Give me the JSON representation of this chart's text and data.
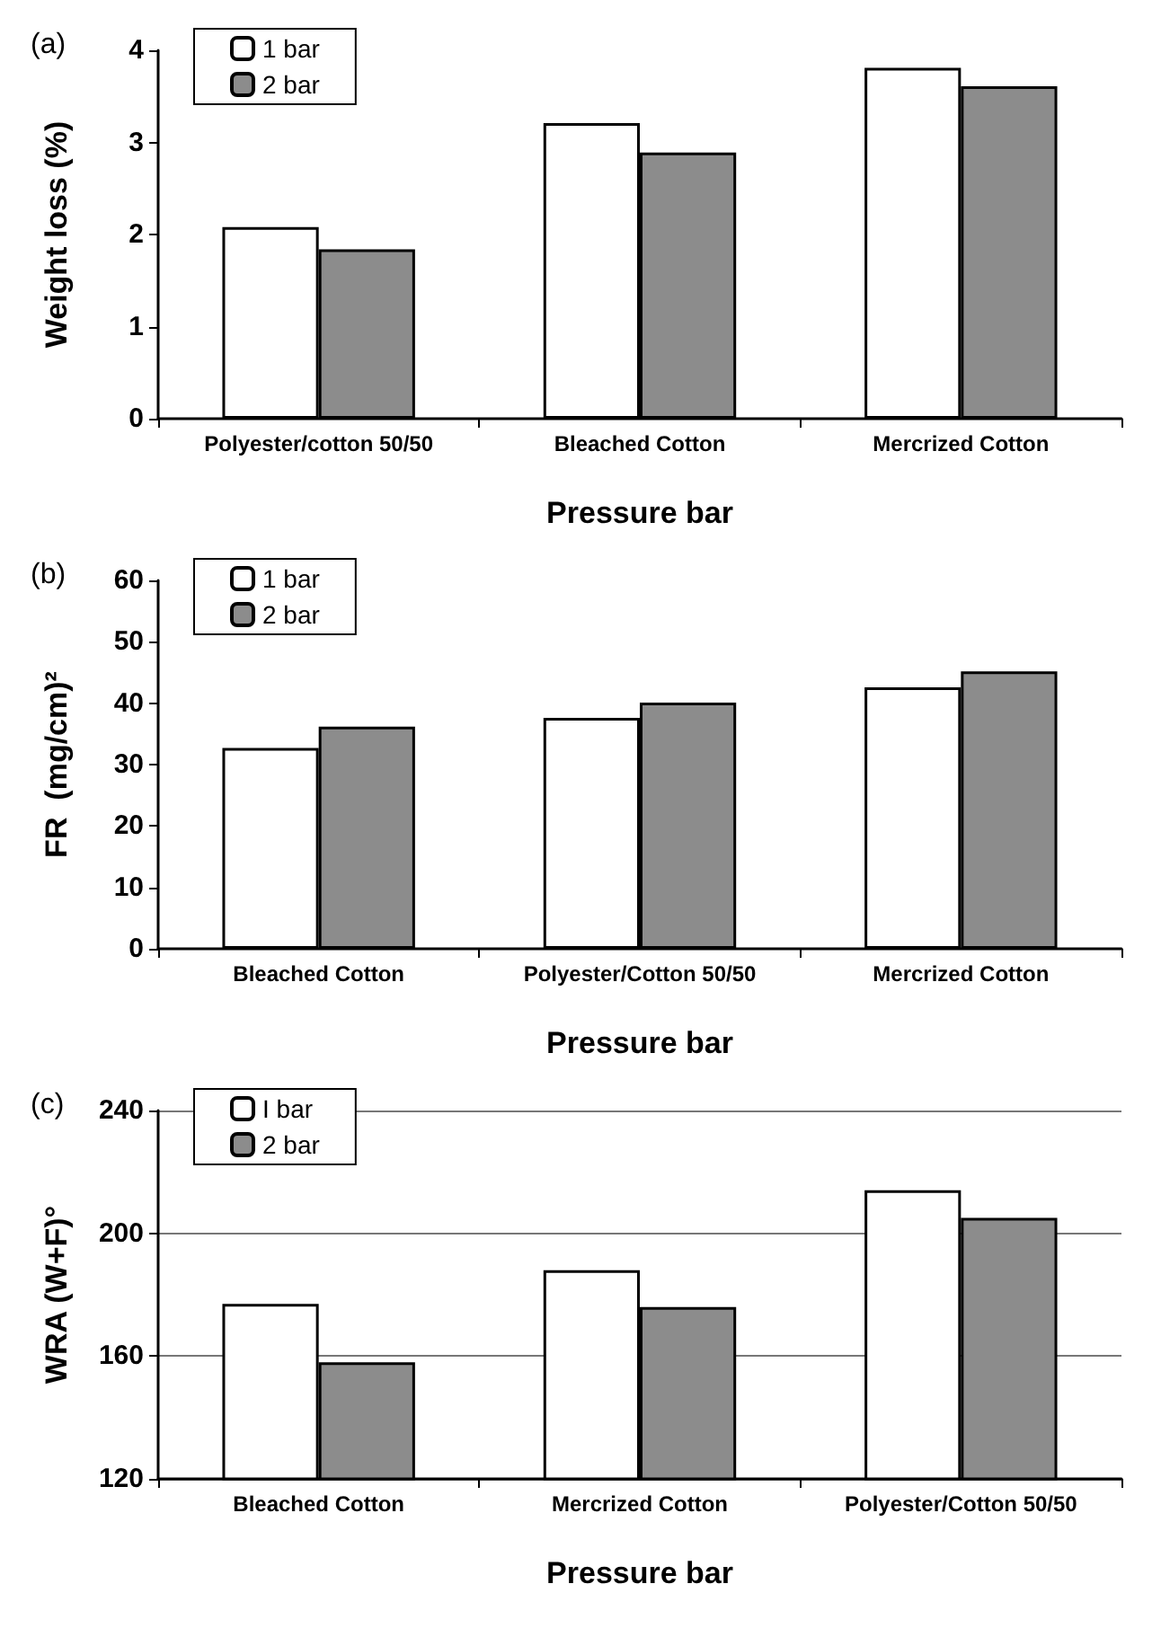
{
  "chart_data": [
    {
      "type": "bar",
      "title": "(a)",
      "xlabel": "Pressure bar",
      "ylabel": "Weight loss (%)",
      "categories": [
        "Polyester/cotton 50/50",
        "Bleached Cotton",
        "Mercrized Cotton"
      ],
      "series": [
        {
          "name": "1 bar",
          "color": "#ffffff",
          "values": [
            2.08,
            3.21,
            3.81
          ]
        },
        {
          "name": "2 bar",
          "color": "#8c8c8c",
          "values": [
            1.84,
            2.89,
            3.61
          ]
        }
      ],
      "ylim": [
        0,
        4
      ],
      "yticks": [
        0,
        1,
        2,
        3,
        4
      ],
      "grid": false,
      "legend": "top left"
    },
    {
      "type": "bar",
      "title": "(b)",
      "xlabel": "Pressure bar",
      "ylabel": "FR  (mg/cm)²",
      "categories": [
        "Bleached Cotton",
        "Polyester/Cotton 50/50",
        "Mercrized Cotton"
      ],
      "series": [
        {
          "name": "1 bar",
          "color": "#ffffff",
          "values": [
            32.7,
            37.6,
            42.6
          ]
        },
        {
          "name": "2 bar",
          "color": "#8c8c8c",
          "values": [
            36.2,
            40.1,
            45.2
          ]
        }
      ],
      "ylim": [
        0,
        60
      ],
      "yticks": [
        0,
        10,
        20,
        30,
        40,
        50,
        60
      ],
      "grid": false,
      "legend": "top left"
    },
    {
      "type": "bar",
      "title": "(c)",
      "xlabel": "Pressure bar",
      "ylabel": "WRA (W+F)°",
      "categories": [
        "Bleached Cotton",
        "Mercrized Cotton",
        "Polyester/Cotton 50/50"
      ],
      "series": [
        {
          "name": "I bar",
          "color": "#ffffff",
          "values": [
            177,
            188,
            214
          ]
        },
        {
          "name": "2 bar",
          "color": "#8c8c8c",
          "values": [
            158,
            176,
            205
          ]
        }
      ],
      "ylim": [
        120,
        240
      ],
      "yticks": [
        120,
        160,
        200,
        240
      ],
      "grid": true,
      "legend": "top left"
    }
  ]
}
